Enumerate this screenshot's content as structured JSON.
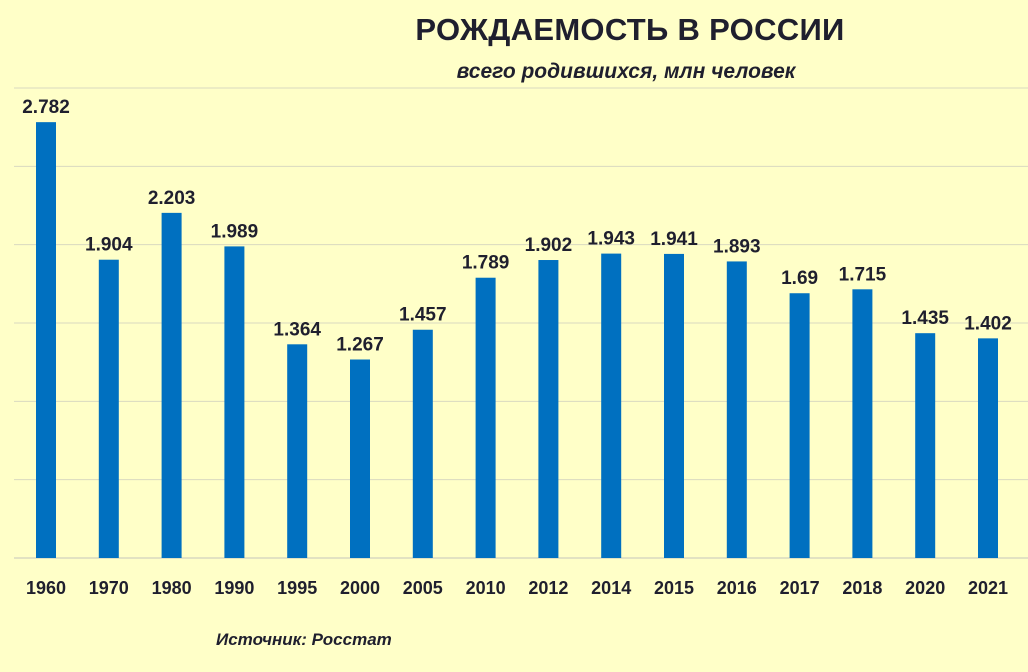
{
  "chart_data": {
    "type": "bar",
    "title": "РОЖДАЕМОСТЬ В РОССИИ",
    "subtitle": "всего родившихся, млн человек",
    "source": "Источник: Росстат",
    "categories": [
      "1960",
      "1970",
      "1980",
      "1990",
      "1995",
      "2000",
      "2005",
      "2010",
      "2012",
      "2014",
      "2015",
      "2016",
      "2017",
      "2018",
      "2020",
      "2021"
    ],
    "values": [
      2.782,
      1.904,
      2.203,
      1.989,
      1.364,
      1.267,
      1.457,
      1.789,
      1.902,
      1.943,
      1.941,
      1.893,
      1.69,
      1.715,
      1.435,
      1.402
    ],
    "value_labels": [
      "2.782",
      "1.904",
      "2.203",
      "1.989",
      "1.364",
      "1.267",
      "1.457",
      "1.789",
      "1.902",
      "1.943",
      "1.941",
      "1.893",
      "1.69",
      "1.715",
      "1.435",
      "1.402"
    ],
    "ylim": [
      0,
      3.0
    ],
    "grid": true,
    "xlabel": "",
    "ylabel": "",
    "colors": {
      "background": "#FFFFC8",
      "bar": "#0070C0",
      "grid": "#D9D9C0",
      "text": "#1F1F2E"
    }
  }
}
